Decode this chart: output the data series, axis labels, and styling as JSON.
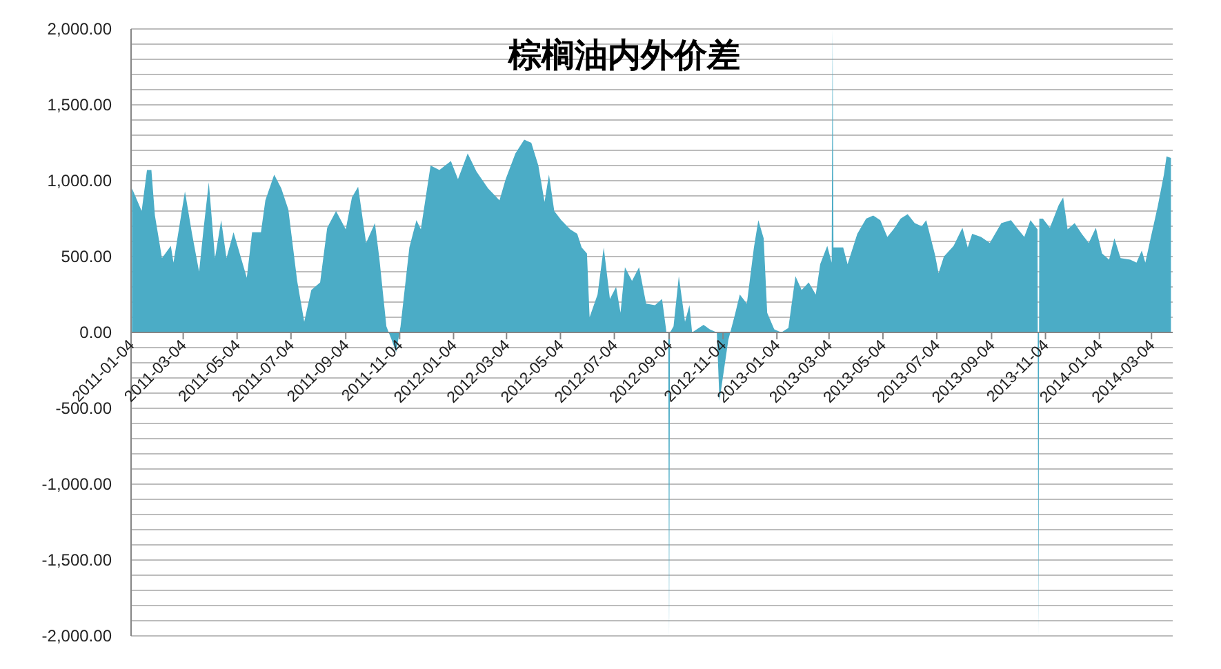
{
  "chart_data": {
    "type": "area",
    "title": "棕榈油内外价差",
    "color": "#4bacc6",
    "grid": "y",
    "xlim": [
      "2011-01-04",
      "2014-03-28"
    ],
    "xticks": [
      "2011-01-04",
      "2011-03-04",
      "2011-05-04",
      "2011-07-04",
      "2011-09-04",
      "2011-11-04",
      "2012-01-04",
      "2012-03-04",
      "2012-05-04",
      "2012-07-04",
      "2012-09-04",
      "2012-11-04",
      "2013-01-04",
      "2013-03-04",
      "2013-05-04",
      "2013-07-04",
      "2013-09-04",
      "2013-11-04",
      "2014-01-04",
      "2014-03-04"
    ],
    "ylim": [
      -2000,
      2000
    ],
    "yticks": [
      {
        "value": -2000,
        "label": "-2,000.00"
      },
      {
        "value": -1900,
        "label": null
      },
      {
        "value": -1800,
        "label": null
      },
      {
        "value": -1700,
        "label": null
      },
      {
        "value": -1600,
        "label": null
      },
      {
        "value": -1500,
        "label": "-1,500.00"
      },
      {
        "value": -1400,
        "label": null
      },
      {
        "value": -1300,
        "label": null
      },
      {
        "value": -1200,
        "label": null
      },
      {
        "value": -1100,
        "label": null
      },
      {
        "value": -1000,
        "label": "-1,000.00"
      },
      {
        "value": -900,
        "label": null
      },
      {
        "value": -800,
        "label": null
      },
      {
        "value": -700,
        "label": null
      },
      {
        "value": -600,
        "label": null
      },
      {
        "value": -500,
        "label": "-500.00"
      },
      {
        "value": -400,
        "label": null
      },
      {
        "value": -300,
        "label": null
      },
      {
        "value": -200,
        "label": null
      },
      {
        "value": -100,
        "label": null
      },
      {
        "value": 0,
        "label": "0.00"
      },
      {
        "value": 100,
        "label": null
      },
      {
        "value": 200,
        "label": null
      },
      {
        "value": 300,
        "label": null
      },
      {
        "value": 400,
        "label": null
      },
      {
        "value": 500,
        "label": "500.00"
      },
      {
        "value": 600,
        "label": null
      },
      {
        "value": 700,
        "label": null
      },
      {
        "value": 800,
        "label": null
      },
      {
        "value": 900,
        "label": null
      },
      {
        "value": 1000,
        "label": "1,000.00"
      },
      {
        "value": 1100,
        "label": null
      },
      {
        "value": 1200,
        "label": null
      },
      {
        "value": 1300,
        "label": null
      },
      {
        "value": 1400,
        "label": null
      },
      {
        "value": 1500,
        "label": "1,500.00"
      },
      {
        "value": 1600,
        "label": null
      },
      {
        "value": 1700,
        "label": null
      },
      {
        "value": 1800,
        "label": null
      },
      {
        "value": 1900,
        "label": null
      },
      {
        "value": 2000,
        "label": "2,000.00"
      }
    ],
    "x": [
      "2011-01-05",
      "2011-01-16",
      "2011-01-22",
      "2011-01-27",
      "2011-01-31",
      "2011-02-08",
      "2011-02-18",
      "2011-02-21",
      "2011-03-06",
      "2011-03-14",
      "2011-03-22",
      "2011-03-27",
      "2011-04-02",
      "2011-04-09",
      "2011-04-16",
      "2011-04-22",
      "2011-04-30",
      "2011-05-15",
      "2011-05-21",
      "2011-05-31",
      "2011-06-05",
      "2011-06-15",
      "2011-06-23",
      "2011-07-01",
      "2011-07-11",
      "2011-07-19",
      "2011-07-27",
      "2011-08-06",
      "2011-08-14",
      "2011-08-24",
      "2011-09-04",
      "2011-09-11",
      "2011-09-18",
      "2011-09-27",
      "2011-10-07",
      "2011-10-12",
      "2011-10-20",
      "2011-10-26",
      "2011-10-31",
      "2011-11-05",
      "2011-11-15",
      "2011-11-23",
      "2011-11-28",
      "2011-12-09",
      "2011-12-19",
      "2012-01-01",
      "2012-01-09",
      "2012-01-20",
      "2012-01-30",
      "2012-02-12",
      "2012-02-25",
      "2012-03-03",
      "2012-03-14",
      "2012-03-24",
      "2012-04-01",
      "2012-04-09",
      "2012-04-16",
      "2012-04-21",
      "2012-04-27",
      "2012-05-05",
      "2012-05-15",
      "2012-05-23",
      "2012-05-28",
      "2012-06-03",
      "2012-06-06",
      "2012-06-15",
      "2012-06-22",
      "2012-06-29",
      "2012-07-06",
      "2012-07-11",
      "2012-07-16",
      "2012-07-24",
      "2012-08-01",
      "2012-08-09",
      "2012-08-19",
      "2012-08-27",
      "2012-09-01",
      "2012-09-03",
      "2012-09-04",
      "2012-09-05",
      "2012-09-09",
      "2012-09-15",
      "2012-09-22",
      "2012-09-27",
      "2012-09-30",
      "2012-10-13",
      "2012-10-20",
      "2012-10-28",
      "2012-10-31",
      "2012-11-10",
      "2012-11-18",
      "2012-11-23",
      "2012-12-01",
      "2012-12-09",
      "2012-12-14",
      "2012-12-20",
      "2012-12-24",
      "2013-01-01",
      "2013-01-09",
      "2013-01-17",
      "2013-01-25",
      "2013-02-01",
      "2013-02-09",
      "2013-02-17",
      "2013-02-22",
      "2013-03-02",
      "2013-03-07",
      "2013-03-08",
      "2013-03-09",
      "2013-03-12",
      "2013-03-20",
      "2013-03-25",
      "2013-04-05",
      "2013-04-15",
      "2013-04-23",
      "2013-05-01",
      "2013-05-09",
      "2013-05-16",
      "2013-05-24",
      "2013-06-01",
      "2013-06-09",
      "2013-06-17",
      "2013-06-22",
      "2013-07-02",
      "2013-07-06",
      "2013-07-12",
      "2013-07-23",
      "2013-08-02",
      "2013-08-08",
      "2013-08-13",
      "2013-08-23",
      "2013-09-02",
      "2013-09-15",
      "2013-09-26",
      "2013-10-04",
      "2013-10-11",
      "2013-10-18",
      "2013-10-26",
      "2013-10-27",
      "2013-10-28",
      "2013-11-01",
      "2013-11-09",
      "2013-11-19",
      "2013-11-24",
      "2013-11-29",
      "2013-12-07",
      "2013-12-15",
      "2013-12-23",
      "2013-12-31",
      "2014-01-07",
      "2014-01-15",
      "2014-01-21",
      "2014-01-28",
      "2014-02-08",
      "2014-02-15",
      "2014-02-21",
      "2014-02-25",
      "2014-03-03",
      "2014-03-11",
      "2014-03-18",
      "2014-03-21",
      "2014-03-26"
    ],
    "values": [
      950,
      800,
      1070,
      1070,
      770,
      490,
      570,
      460,
      930,
      650,
      400,
      680,
      990,
      490,
      740,
      490,
      660,
      360,
      660,
      660,
      870,
      1040,
      950,
      810,
      340,
      70,
      280,
      330,
      690,
      800,
      680,
      890,
      960,
      590,
      720,
      490,
      40,
      -50,
      -130,
      40,
      560,
      740,
      680,
      1100,
      1070,
      1130,
      1010,
      1180,
      1060,
      950,
      870,
      1010,
      1180,
      1270,
      1250,
      1100,
      860,
      1040,
      800,
      740,
      680,
      650,
      560,
      520,
      100,
      250,
      560,
      220,
      300,
      130,
      430,
      340,
      430,
      190,
      180,
      220,
      0,
      0,
      -2000,
      0,
      40,
      370,
      70,
      180,
      0,
      50,
      20,
      0,
      -450,
      -50,
      130,
      250,
      190,
      560,
      740,
      620,
      130,
      20,
      0,
      30,
      370,
      280,
      330,
      250,
      450,
      570,
      460,
      2000,
      560,
      560,
      560,
      450,
      650,
      750,
      770,
      740,
      630,
      680,
      750,
      780,
      720,
      700,
      740,
      510,
      390,
      500,
      570,
      690,
      560,
      650,
      630,
      590,
      720,
      740,
      680,
      630,
      740,
      680,
      -2000,
      750,
      750,
      690,
      840,
      890,
      680,
      720,
      650,
      590,
      690,
      520,
      480,
      620,
      490,
      480,
      460,
      540,
      460,
      620,
      830,
      1040,
      1160,
      1150
    ]
  }
}
